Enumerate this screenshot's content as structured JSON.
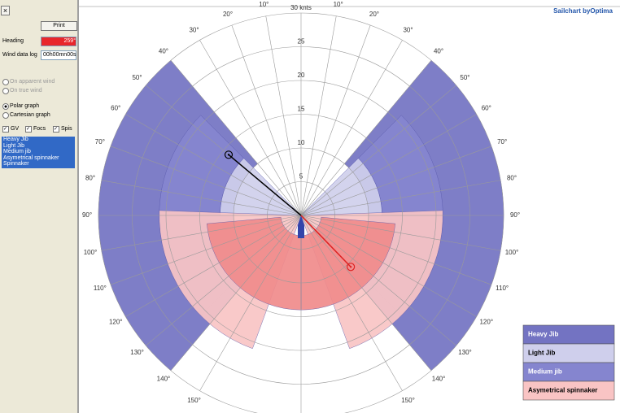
{
  "window": {
    "close": "×"
  },
  "panel": {
    "print": "Print",
    "heading_label": "Heading",
    "heading_value": "259°",
    "log_label": "Wind data log",
    "log_value": "00h00mn00s",
    "radios": [
      {
        "label": "On apparent wind",
        "enabled": false,
        "checked": false
      },
      {
        "label": "On true wind",
        "enabled": false,
        "checked": false
      },
      {
        "label": "Polar graph",
        "enabled": true,
        "checked": true
      },
      {
        "label": "Cartesian graph",
        "enabled": true,
        "checked": false
      }
    ],
    "checks": [
      {
        "label": "GV",
        "checked": true
      },
      {
        "label": "Focs",
        "checked": true
      },
      {
        "label": "Spis",
        "checked": true
      }
    ],
    "sails": [
      "Heavy Jib",
      "Light Jib",
      "Medium jib",
      "Asymetrical spinnaker",
      "Spinnaker"
    ]
  },
  "chart_data": {
    "type": "polar",
    "brand": "Sailchart byOptima",
    "rlim": [
      0,
      30
    ],
    "rticks": [
      5,
      10,
      15,
      20,
      25,
      {
        "value": 30,
        "label": "30 knts"
      }
    ],
    "angleticks": [
      {
        "value": 10,
        "label": "10°"
      },
      {
        "value": 20,
        "label": "20°"
      },
      {
        "value": 30,
        "label": "30°"
      },
      {
        "value": 40,
        "label": "40°"
      },
      {
        "value": 50,
        "label": "50°"
      },
      {
        "value": 60,
        "label": "60°"
      },
      {
        "value": 70,
        "label": "70°"
      },
      {
        "value": 80,
        "label": "80°"
      },
      {
        "value": 90,
        "label": "90°"
      },
      {
        "value": 100,
        "label": "100°"
      },
      {
        "value": 110,
        "label": "110°"
      },
      {
        "value": 120,
        "label": "120°"
      },
      {
        "value": 130,
        "label": "130°"
      },
      {
        "value": 140,
        "label": "140°"
      },
      {
        "value": 150,
        "label": "150°"
      }
    ],
    "zones": [
      {
        "name": "Heavy Jib",
        "color": "#7373c2",
        "text_color": "#ffffff",
        "angles": [
          40,
          140
        ],
        "speeds": [
          10,
          30
        ]
      },
      {
        "name": "Light Jib",
        "color": "#cfcfec",
        "text_color": "#000000",
        "angles": [
          45,
          90
        ],
        "speeds": [
          0,
          12
        ]
      },
      {
        "name": "Medium jib",
        "color": "#8585cf",
        "text_color": "#ffffff",
        "angles": [
          45,
          135
        ],
        "speeds": [
          12,
          21
        ]
      },
      {
        "name": "Asymetrical spinnaker",
        "color": "#f9c4c4",
        "text_color": "#000000",
        "angles": [
          88,
          160
        ],
        "speeds": [
          0,
          21
        ]
      },
      {
        "color": "#f08b8b",
        "angles": [
          95,
          180
        ],
        "speeds": [
          3,
          14
        ]
      }
    ],
    "vectors": [
      {
        "angle": -50,
        "speed": 14,
        "color": "#000000"
      },
      {
        "angle": 136,
        "speed": 10.6,
        "color": "#dd2222"
      }
    ],
    "legend": "bottom-right"
  }
}
